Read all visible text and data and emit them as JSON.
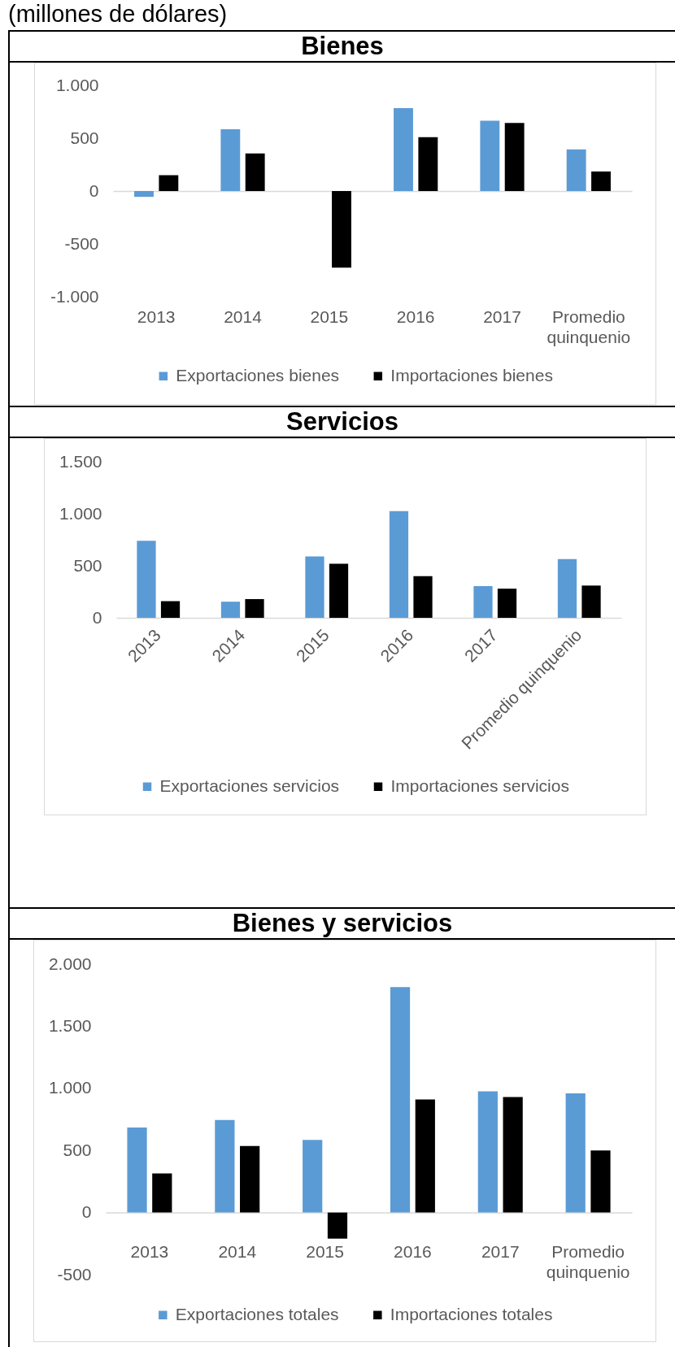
{
  "chart_data": [
    {
      "type": "bar",
      "title": "Bienes",
      "annotations": [
        "(millones de dólares)"
      ],
      "categories": [
        "2013",
        "2014",
        "2015",
        "2016",
        "2017",
        "Promedio quinquenio"
      ],
      "series": [
        {
          "name": "Exportaciones bienes",
          "color": "#5b9bd5",
          "values": [
            -55,
            585,
            0,
            785,
            665,
            395
          ]
        },
        {
          "name": "Importaciones bienes",
          "color": "#000000",
          "values": [
            150,
            355,
            -725,
            510,
            645,
            185
          ]
        }
      ],
      "ylim": [
        -1000,
        1000
      ],
      "yticks": [
        {
          "value": -1000,
          "label": "-1.000"
        },
        -500,
        0,
        500,
        {
          "value": 1000,
          "label": "1.000"
        }
      ],
      "legend": "bottom"
    },
    {
      "type": "bar",
      "title": "Servicios",
      "categories": [
        "2013",
        "2014",
        "2015",
        "2016",
        "2017",
        "Promedio quinquenio"
      ],
      "series": [
        {
          "name": "Exportaciones servicios",
          "color": "#5b9bd5",
          "values": [
            740,
            155,
            590,
            1025,
            305,
            565
          ]
        },
        {
          "name": "Importaciones servicios",
          "color": "#000000",
          "values": [
            160,
            180,
            520,
            400,
            280,
            310
          ]
        }
      ],
      "ylim": [
        0,
        1500
      ],
      "yticks": [
        0,
        500,
        {
          "value": 1000,
          "label": "1.000"
        },
        {
          "value": 1500,
          "label": "1.500"
        }
      ],
      "legend": "bottom"
    },
    {
      "type": "bar",
      "title": "Bienes y servicios",
      "categories": [
        "2013",
        "2014",
        "2015",
        "2016",
        "2017",
        "Promedio quinquenio"
      ],
      "series": [
        {
          "name": "Exportaciones totales",
          "color": "#5b9bd5",
          "values": [
            685,
            745,
            585,
            1815,
            975,
            960
          ]
        },
        {
          "name": "Importaciones totales",
          "color": "#000000",
          "values": [
            315,
            535,
            -210,
            910,
            930,
            500
          ]
        }
      ],
      "ylim": [
        -500,
        2000
      ],
      "yticks": [
        -500,
        0,
        500,
        {
          "value": 1000,
          "label": "1.000"
        },
        {
          "value": 1500,
          "label": "1.500"
        },
        {
          "value": 2000,
          "label": "2.000"
        }
      ],
      "legend": "bottom"
    }
  ]
}
